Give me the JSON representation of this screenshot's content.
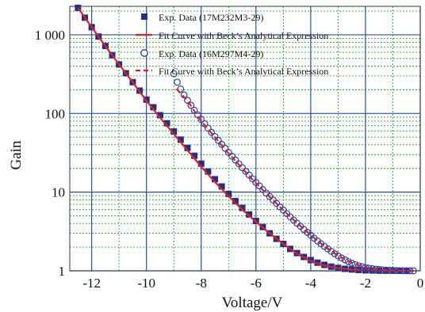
{
  "chart_data": {
    "type": "scatter",
    "xlabel": "Voltage/V",
    "ylabel": "Gain",
    "xlim": [
      -12.8,
      0
    ],
    "ylim": [
      1,
      2300
    ],
    "y_scale": "log",
    "x_ticks": [
      -12,
      -10,
      -8,
      -6,
      -4,
      -2,
      0
    ],
    "x_tick_labels": [
      "-12",
      "-10",
      "-8",
      "-6",
      "-4",
      "-2",
      "0"
    ],
    "y_ticks": [
      1,
      10,
      100,
      1000
    ],
    "y_tick_labels": [
      "1",
      "10",
      "100",
      "1 000"
    ],
    "grid": true,
    "legend_position": "top-right",
    "colors": {
      "filled_marker": "#1f2f8a",
      "open_marker": "#2a3fa0",
      "fit_line": "#e02020",
      "major_grid": "#2f4aa8",
      "minor_grid": "#22aa22"
    },
    "series": [
      {
        "name": "Exp. Data (17M232M3-29)",
        "marker": "filled-square",
        "x": [
          -12.5,
          -12.25,
          -12.0,
          -11.75,
          -11.5,
          -11.25,
          -11.0,
          -10.75,
          -10.5,
          -10.25,
          -10.0,
          -9.75,
          -9.5,
          -9.25,
          -9.0,
          -8.75,
          -8.5,
          -8.25,
          -8.0,
          -7.75,
          -7.5,
          -7.25,
          -7.0,
          -6.75,
          -6.5,
          -6.25,
          -6.0,
          -5.75,
          -5.5,
          -5.25,
          -5.0,
          -4.75,
          -4.5,
          -4.25,
          -4.0,
          -3.75,
          -3.5,
          -3.25,
          -3.0,
          -2.75,
          -2.5,
          -2.25,
          -2.0,
          -1.75,
          -1.5,
          -1.25,
          -1.0,
          -0.75,
          -0.5
        ],
        "y": [
          2200,
          1650,
          1250,
          950,
          720,
          550,
          420,
          325,
          250,
          195,
          150,
          120,
          95,
          75,
          59,
          46.5,
          36.5,
          29,
          23,
          18.3,
          14.6,
          11.8,
          9.5,
          7.7,
          6.3,
          5.2,
          4.3,
          3.6,
          3.0,
          2.55,
          2.2,
          1.9,
          1.68,
          1.5,
          1.37,
          1.27,
          1.19,
          1.13,
          1.09,
          1.06,
          1.04,
          1.025,
          1.015,
          1.01,
          1.005,
          1.003,
          1.002,
          1.001,
          1.0
        ]
      },
      {
        "name": "Fit Curve with Beck’s Analytical Expression",
        "line": "solid",
        "x": [
          -12.5,
          -12.0,
          -11.5,
          -11.0,
          -10.5,
          -10.0,
          -9.5,
          -9.0,
          -8.5,
          -8.0,
          -7.5,
          -7.0,
          -6.5,
          -6.0,
          -5.5,
          -5.0,
          -4.5,
          -4.0,
          -3.5,
          -3.0,
          -2.5,
          -2.0,
          -1.5,
          -1.0,
          -0.5
        ],
        "y": [
          2200,
          1250,
          720,
          420,
          250,
          145,
          88,
          55,
          34,
          21,
          13.5,
          8.9,
          6.0,
          4.2,
          3.0,
          2.2,
          1.65,
          1.33,
          1.16,
          1.08,
          1.035,
          1.015,
          1.006,
          1.002,
          1.0
        ]
      },
      {
        "name": "Exp. Data (16M297M4-29)",
        "marker": "open-circle",
        "x": [
          -9.0,
          -8.875,
          -8.75,
          -8.625,
          -8.5,
          -8.375,
          -8.25,
          -8.125,
          -8.0,
          -7.875,
          -7.75,
          -7.625,
          -7.5,
          -7.375,
          -7.25,
          -7.125,
          -7.0,
          -6.875,
          -6.75,
          -6.625,
          -6.5,
          -6.375,
          -6.25,
          -6.125,
          -6.0,
          -5.875,
          -5.75,
          -5.625,
          -5.5,
          -5.375,
          -5.25,
          -5.125,
          -5.0,
          -4.875,
          -4.75,
          -4.625,
          -4.5,
          -4.375,
          -4.25,
          -4.125,
          -4.0,
          -3.875,
          -3.75,
          -3.625,
          -3.5,
          -3.375,
          -3.25,
          -3.125,
          -3.0,
          -2.875,
          -2.75,
          -2.625,
          -2.5,
          -2.375,
          -2.25,
          -2.125,
          -2.0,
          -1.875,
          -1.75,
          -1.625,
          -1.5,
          -1.375,
          -1.25,
          -1.125,
          -1.0,
          -0.875,
          -0.75,
          -0.625,
          -0.5,
          -0.375,
          -0.25
        ],
        "y": [
          320,
          250,
          205,
          172,
          147,
          127,
          110,
          96,
          84,
          74,
          65,
          57.5,
          51,
          45.5,
          40.5,
          36,
          32,
          28.6,
          25.6,
          22.9,
          20.5,
          18.4,
          16.5,
          14.8,
          13.3,
          12.0,
          10.8,
          9.75,
          8.8,
          7.95,
          7.2,
          6.5,
          5.9,
          5.35,
          4.85,
          4.42,
          4.03,
          3.68,
          3.36,
          3.08,
          2.83,
          2.6,
          2.39,
          2.21,
          2.04,
          1.9,
          1.77,
          1.65,
          1.55,
          1.46,
          1.38,
          1.31,
          1.25,
          1.2,
          1.16,
          1.13,
          1.1,
          1.08,
          1.065,
          1.05,
          1.04,
          1.03,
          1.022,
          1.016,
          1.011,
          1.008,
          1.005,
          1.003,
          1.002,
          1.001,
          1.0
        ]
      },
      {
        "name": "Fit Curve with Beck’s Analytical Expression",
        "line": "dashed",
        "x": [
          -8.9,
          -8.5,
          -8.0,
          -7.5,
          -7.0,
          -6.5,
          -6.0,
          -5.5,
          -5.0,
          -4.5,
          -4.0,
          -3.5,
          -3.0,
          -2.5,
          -2.0,
          -1.5,
          -1.0,
          -0.5,
          -0.25
        ],
        "y": [
          205,
          145,
          80,
          50,
          31,
          20,
          13,
          8.7,
          5.9,
          4.05,
          2.85,
          2.05,
          1.56,
          1.26,
          1.1,
          1.04,
          1.011,
          1.002,
          1.0
        ]
      }
    ]
  }
}
